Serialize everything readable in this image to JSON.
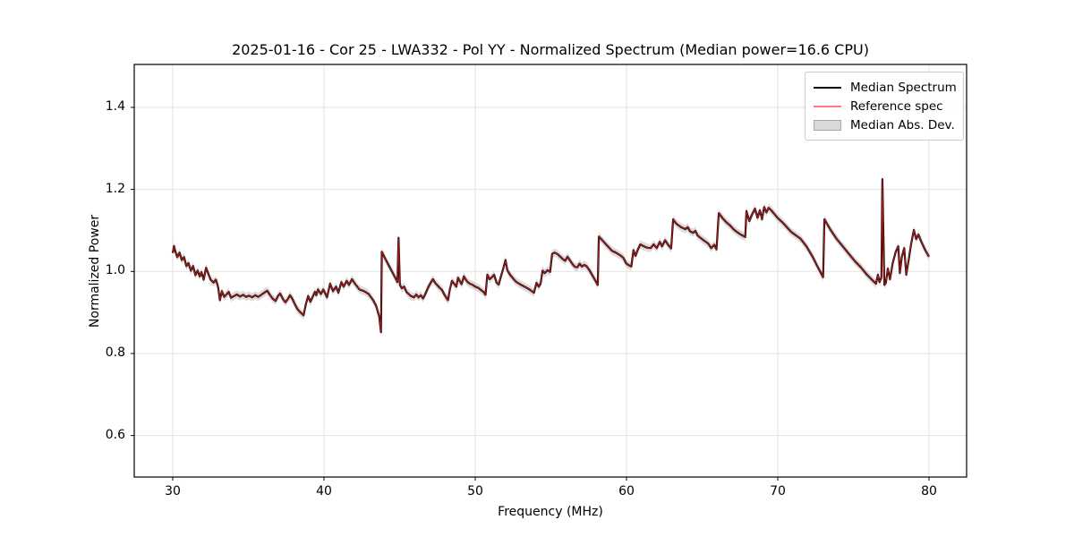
{
  "chart_data": {
    "type": "line",
    "title": "2025-01-16 - Cor 25 - LWA332 - Pol YY - Normalized Spectrum (Median power=16.6 CPU)",
    "xlabel": "Frequency (MHz)",
    "ylabel": "Normalized Power",
    "xlim": [
      27.5,
      82.5
    ],
    "ylim": [
      0.52,
      1.5
    ],
    "xticks": [
      "30",
      "40",
      "50",
      "60",
      "70",
      "80"
    ],
    "yticks": [
      "0.6",
      "0.8",
      "1.0",
      "1.2",
      "1.4"
    ],
    "grid": true,
    "legend_position": "upper right",
    "colors": {
      "grid": "#e2e2e2",
      "frame": "#000000",
      "band": "#c0c0c0",
      "background": "#ffffff"
    },
    "mad_half_width": 0.01,
    "legend": [
      {
        "label": "Median Spectrum",
        "swatch": "line",
        "color": "#000000"
      },
      {
        "label": "Reference spec",
        "swatch": "line",
        "color": "#ff7a7a"
      },
      {
        "label": "Median Abs. Dev.",
        "swatch": "patch",
        "color": "#d9d9d9"
      }
    ],
    "series": [
      {
        "name": "Median Spectrum",
        "color": "#000000",
        "opacity": 1.0,
        "line_width": 2.2
      },
      {
        "name": "Reference spec",
        "color": "#ff2828",
        "opacity": 0.62,
        "line_width": 1.3
      }
    ],
    "points": [
      [
        30.0,
        1.045
      ],
      [
        30.08,
        1.062
      ],
      [
        30.18,
        1.048
      ],
      [
        30.3,
        1.035
      ],
      [
        30.45,
        1.046
      ],
      [
        30.6,
        1.028
      ],
      [
        30.75,
        1.035
      ],
      [
        30.9,
        1.013
      ],
      [
        31.05,
        1.02
      ],
      [
        31.2,
        1.002
      ],
      [
        31.35,
        1.013
      ],
      [
        31.5,
        0.991
      ],
      [
        31.65,
        1.002
      ],
      [
        31.78,
        0.988
      ],
      [
        31.9,
        0.998
      ],
      [
        32.05,
        0.98
      ],
      [
        32.2,
        1.009
      ],
      [
        32.35,
        0.995
      ],
      [
        32.5,
        0.98
      ],
      [
        32.7,
        0.973
      ],
      [
        32.85,
        0.98
      ],
      [
        33.0,
        0.962
      ],
      [
        33.12,
        0.93
      ],
      [
        33.25,
        0.952
      ],
      [
        33.4,
        0.938
      ],
      [
        33.55,
        0.944
      ],
      [
        33.7,
        0.95
      ],
      [
        33.85,
        0.936
      ],
      [
        34.05,
        0.94
      ],
      [
        34.25,
        0.944
      ],
      [
        34.45,
        0.939
      ],
      [
        34.65,
        0.943
      ],
      [
        34.85,
        0.938
      ],
      [
        35.05,
        0.941
      ],
      [
        35.25,
        0.937
      ],
      [
        35.45,
        0.942
      ],
      [
        35.65,
        0.938
      ],
      [
        35.85,
        0.943
      ],
      [
        36.05,
        0.948
      ],
      [
        36.25,
        0.953
      ],
      [
        36.4,
        0.944
      ],
      [
        36.6,
        0.934
      ],
      [
        36.8,
        0.928
      ],
      [
        36.95,
        0.94
      ],
      [
        37.1,
        0.946
      ],
      [
        37.3,
        0.932
      ],
      [
        37.45,
        0.925
      ],
      [
        37.6,
        0.932
      ],
      [
        37.75,
        0.942
      ],
      [
        37.9,
        0.934
      ],
      [
        38.05,
        0.922
      ],
      [
        38.25,
        0.908
      ],
      [
        38.45,
        0.9
      ],
      [
        38.65,
        0.893
      ],
      [
        38.8,
        0.92
      ],
      [
        38.95,
        0.94
      ],
      [
        39.1,
        0.926
      ],
      [
        39.25,
        0.938
      ],
      [
        39.4,
        0.95
      ],
      [
        39.5,
        0.942
      ],
      [
        39.6,
        0.956
      ],
      [
        39.8,
        0.945
      ],
      [
        39.95,
        0.956
      ],
      [
        40.2,
        0.937
      ],
      [
        40.4,
        0.97
      ],
      [
        40.6,
        0.952
      ],
      [
        40.8,
        0.963
      ],
      [
        40.95,
        0.948
      ],
      [
        41.15,
        0.974
      ],
      [
        41.3,
        0.963
      ],
      [
        41.5,
        0.977
      ],
      [
        41.65,
        0.967
      ],
      [
        41.85,
        0.981
      ],
      [
        42.05,
        0.97
      ],
      [
        42.35,
        0.956
      ],
      [
        42.65,
        0.952
      ],
      [
        42.95,
        0.945
      ],
      [
        43.25,
        0.93
      ],
      [
        43.45,
        0.916
      ],
      [
        43.65,
        0.89
      ],
      [
        43.77,
        0.852
      ],
      [
        43.82,
        1.048
      ],
      [
        43.95,
        1.038
      ],
      [
        44.15,
        1.024
      ],
      [
        44.35,
        1.01
      ],
      [
        44.55,
        0.996
      ],
      [
        44.72,
        0.984
      ],
      [
        44.86,
        0.974
      ],
      [
        44.93,
        1.082
      ],
      [
        45.02,
        0.967
      ],
      [
        45.15,
        0.959
      ],
      [
        45.3,
        0.963
      ],
      [
        45.45,
        0.95
      ],
      [
        45.6,
        0.945
      ],
      [
        45.75,
        0.94
      ],
      [
        45.95,
        0.937
      ],
      [
        46.1,
        0.944
      ],
      [
        46.25,
        0.937
      ],
      [
        46.4,
        0.942
      ],
      [
        46.55,
        0.934
      ],
      [
        46.7,
        0.945
      ],
      [
        46.9,
        0.962
      ],
      [
        47.05,
        0.972
      ],
      [
        47.2,
        0.981
      ],
      [
        47.35,
        0.972
      ],
      [
        47.5,
        0.966
      ],
      [
        47.65,
        0.96
      ],
      [
        47.8,
        0.955
      ],
      [
        47.95,
        0.944
      ],
      [
        48.1,
        0.935
      ],
      [
        48.2,
        0.93
      ],
      [
        48.32,
        0.956
      ],
      [
        48.46,
        0.977
      ],
      [
        48.6,
        0.97
      ],
      [
        48.75,
        0.963
      ],
      [
        48.86,
        0.985
      ],
      [
        49.0,
        0.975
      ],
      [
        49.1,
        0.969
      ],
      [
        49.25,
        0.988
      ],
      [
        49.38,
        0.98
      ],
      [
        49.5,
        0.974
      ],
      [
        49.65,
        0.97
      ],
      [
        49.84,
        0.967
      ],
      [
        50.0,
        0.963
      ],
      [
        50.2,
        0.96
      ],
      [
        50.4,
        0.954
      ],
      [
        50.55,
        0.95
      ],
      [
        50.68,
        0.943
      ],
      [
        50.8,
        0.992
      ],
      [
        50.95,
        0.981
      ],
      [
        51.1,
        0.986
      ],
      [
        51.25,
        0.992
      ],
      [
        51.4,
        0.973
      ],
      [
        51.55,
        0.968
      ],
      [
        51.7,
        0.988
      ],
      [
        51.85,
        1.007
      ],
      [
        52.0,
        1.028
      ],
      [
        52.12,
        1.003
      ],
      [
        52.3,
        0.992
      ],
      [
        52.5,
        0.983
      ],
      [
        52.7,
        0.975
      ],
      [
        52.9,
        0.97
      ],
      [
        53.1,
        0.966
      ],
      [
        53.3,
        0.962
      ],
      [
        53.5,
        0.958
      ],
      [
        53.7,
        0.953
      ],
      [
        53.88,
        0.948
      ],
      [
        54.05,
        0.972
      ],
      [
        54.2,
        0.963
      ],
      [
        54.32,
        0.97
      ],
      [
        54.45,
        1.002
      ],
      [
        54.6,
        0.996
      ],
      [
        54.78,
        1.003
      ],
      [
        54.95,
        0.999
      ],
      [
        55.08,
        1.043
      ],
      [
        55.25,
        1.046
      ],
      [
        55.45,
        1.042
      ],
      [
        55.62,
        1.036
      ],
      [
        55.8,
        1.03
      ],
      [
        55.95,
        1.026
      ],
      [
        56.1,
        1.036
      ],
      [
        56.28,
        1.026
      ],
      [
        56.45,
        1.017
      ],
      [
        56.6,
        1.011
      ],
      [
        56.75,
        1.01
      ],
      [
        56.9,
        1.019
      ],
      [
        57.05,
        1.012
      ],
      [
        57.2,
        1.016
      ],
      [
        57.35,
        1.013
      ],
      [
        57.55,
        1.003
      ],
      [
        57.75,
        0.99
      ],
      [
        57.95,
        0.977
      ],
      [
        58.1,
        0.967
      ],
      [
        58.17,
        1.085
      ],
      [
        58.45,
        1.074
      ],
      [
        58.7,
        1.064
      ],
      [
        58.9,
        1.056
      ],
      [
        59.05,
        1.05
      ],
      [
        59.25,
        1.047
      ],
      [
        59.42,
        1.043
      ],
      [
        59.6,
        1.039
      ],
      [
        59.8,
        1.033
      ],
      [
        59.97,
        1.02
      ],
      [
        60.15,
        1.015
      ],
      [
        60.32,
        1.012
      ],
      [
        60.46,
        1.052
      ],
      [
        60.6,
        1.038
      ],
      [
        60.76,
        1.054
      ],
      [
        60.92,
        1.066
      ],
      [
        61.12,
        1.062
      ],
      [
        61.35,
        1.058
      ],
      [
        61.6,
        1.057
      ],
      [
        61.8,
        1.066
      ],
      [
        62.0,
        1.057
      ],
      [
        62.2,
        1.072
      ],
      [
        62.35,
        1.061
      ],
      [
        62.55,
        1.076
      ],
      [
        62.75,
        1.065
      ],
      [
        62.95,
        1.056
      ],
      [
        63.08,
        1.127
      ],
      [
        63.3,
        1.116
      ],
      [
        63.6,
        1.108
      ],
      [
        63.9,
        1.103
      ],
      [
        64.05,
        1.108
      ],
      [
        64.2,
        1.098
      ],
      [
        64.4,
        1.094
      ],
      [
        64.55,
        1.099
      ],
      [
        64.7,
        1.088
      ],
      [
        64.85,
        1.083
      ],
      [
        65.1,
        1.076
      ],
      [
        65.4,
        1.068
      ],
      [
        65.6,
        1.057
      ],
      [
        65.8,
        1.065
      ],
      [
        65.95,
        1.054
      ],
      [
        66.1,
        1.142
      ],
      [
        66.35,
        1.13
      ],
      [
        66.6,
        1.12
      ],
      [
        66.85,
        1.112
      ],
      [
        67.1,
        1.102
      ],
      [
        67.35,
        1.095
      ],
      [
        67.6,
        1.089
      ],
      [
        67.85,
        1.084
      ],
      [
        67.93,
        1.147
      ],
      [
        68.12,
        1.123
      ],
      [
        68.3,
        1.139
      ],
      [
        68.5,
        1.153
      ],
      [
        68.66,
        1.131
      ],
      [
        68.82,
        1.149
      ],
      [
        68.96,
        1.127
      ],
      [
        69.1,
        1.157
      ],
      [
        69.25,
        1.144
      ],
      [
        69.4,
        1.155
      ],
      [
        69.6,
        1.148
      ],
      [
        69.8,
        1.139
      ],
      [
        70.0,
        1.13
      ],
      [
        70.3,
        1.12
      ],
      [
        70.6,
        1.108
      ],
      [
        70.9,
        1.096
      ],
      [
        71.2,
        1.088
      ],
      [
        71.5,
        1.08
      ],
      [
        71.9,
        1.061
      ],
      [
        72.3,
        1.036
      ],
      [
        72.6,
        1.014
      ],
      [
        73.0,
        0.986
      ],
      [
        73.08,
        1.127
      ],
      [
        73.5,
        1.101
      ],
      [
        73.9,
        1.079
      ],
      [
        74.3,
        1.061
      ],
      [
        74.7,
        1.043
      ],
      [
        75.1,
        1.025
      ],
      [
        75.5,
        1.01
      ],
      [
        75.9,
        0.992
      ],
      [
        76.3,
        0.977
      ],
      [
        76.5,
        0.97
      ],
      [
        76.62,
        0.992
      ],
      [
        76.73,
        0.974
      ],
      [
        76.85,
        0.985
      ],
      [
        76.92,
        1.225
      ],
      [
        77.05,
        0.967
      ],
      [
        77.15,
        0.972
      ],
      [
        77.28,
        1.007
      ],
      [
        77.42,
        0.981
      ],
      [
        77.6,
        1.02
      ],
      [
        77.8,
        1.048
      ],
      [
        77.97,
        1.061
      ],
      [
        78.07,
        0.996
      ],
      [
        78.2,
        1.035
      ],
      [
        78.36,
        1.057
      ],
      [
        78.5,
        0.992
      ],
      [
        78.66,
        1.03
      ],
      [
        78.82,
        1.068
      ],
      [
        79.0,
        1.101
      ],
      [
        79.15,
        1.079
      ],
      [
        79.3,
        1.09
      ],
      [
        79.5,
        1.072
      ],
      [
        79.75,
        1.052
      ],
      [
        80.0,
        1.036
      ]
    ]
  }
}
